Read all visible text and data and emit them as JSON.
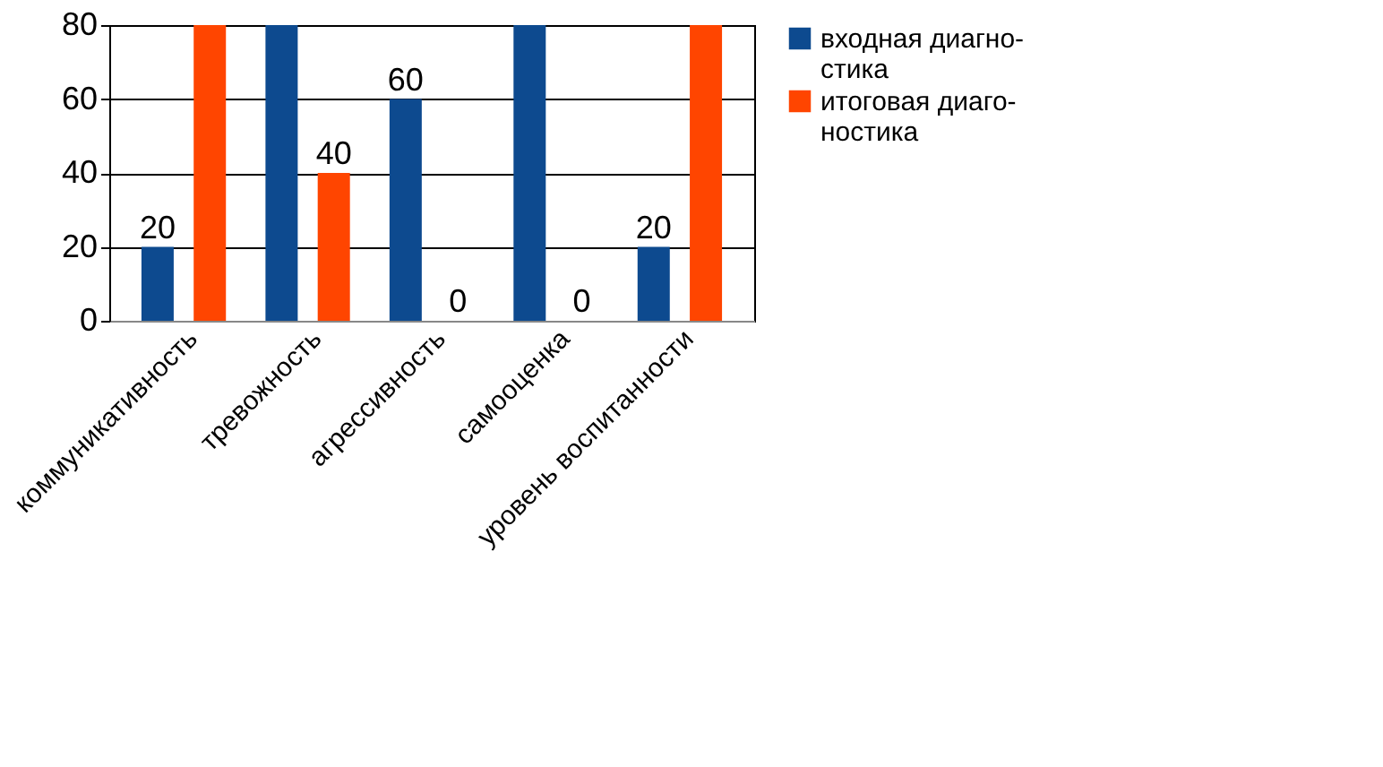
{
  "chart_data": {
    "type": "bar",
    "categories": [
      "коммуникативность",
      "тревожность",
      "агрессивность",
      "самооценка",
      "уровень воспитанности"
    ],
    "series": [
      {
        "name": "входная диагно-\nстика",
        "color": "#0d4a8f",
        "values": [
          20,
          80,
          60,
          80,
          20
        ],
        "value_labels": [
          "20",
          null,
          "60",
          null,
          "20"
        ]
      },
      {
        "name": "итоговая диаго-\nностика",
        "color": "#ff4500",
        "values": [
          80,
          40,
          0,
          0,
          80
        ],
        "value_labels": [
          null,
          "40",
          "0",
          "0",
          null
        ]
      }
    ],
    "ylim": [
      0,
      80
    ],
    "yticks": [
      0,
      20,
      40,
      60,
      80
    ],
    "grid": "y",
    "legend": "right"
  }
}
